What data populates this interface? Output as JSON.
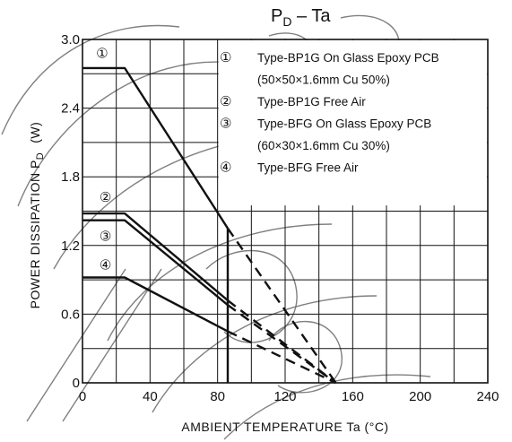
{
  "chart_data": {
    "type": "line",
    "title_main": "P",
    "title_sub": "D",
    "title_rest": " – Ta",
    "xlabel": "AMBIENT TEMPERATURE    Ta    (°C)",
    "ylabel_main": "POWER DISSIPATION  P",
    "ylabel_sub": "D",
    "ylabel_unit": "(W)",
    "xlim": [
      0,
      240
    ],
    "ylim": [
      0,
      3.0
    ],
    "x_ticks": [
      0,
      40,
      80,
      120,
      160,
      200,
      240
    ],
    "y_ticks": [
      0,
      0.6,
      1.2,
      1.8,
      2.4,
      3.0
    ],
    "x_tick_labels": [
      "0",
      "40",
      "80",
      "120",
      "160",
      "200",
      "240"
    ],
    "y_tick_labels": [
      "0",
      "0.6",
      "1.2",
      "1.8",
      "2.4",
      "3.0"
    ],
    "x_grid": [
      20,
      40,
      60,
      80,
      100,
      120,
      140,
      160,
      180,
      200,
      220
    ],
    "y_grid": [
      0.3,
      0.6,
      0.9,
      1.2,
      1.5,
      1.8,
      2.1,
      2.4,
      2.7
    ],
    "grid": true,
    "series": [
      {
        "marker": "①",
        "name": "Type-BP1G On Glass Epoxy PCB",
        "name_line2": "(50×50×1.6mm Cu 50%)",
        "solid": [
          [
            0,
            2.75
          ],
          [
            25,
            2.75
          ],
          [
            86,
            1.35
          ]
        ],
        "dashed": [
          [
            86,
            1.35
          ],
          [
            150,
            0
          ]
        ],
        "vertical": [
          [
            86,
            1.35
          ],
          [
            86,
            0
          ]
        ]
      },
      {
        "marker": "②",
        "name": "Type-BP1G Free Air",
        "name_line2": "",
        "solid": [
          [
            0,
            1.48
          ],
          [
            25,
            1.48
          ],
          [
            86,
            0.72
          ]
        ],
        "dashed": [
          [
            86,
            0.72
          ],
          [
            150,
            0
          ]
        ]
      },
      {
        "marker": "③",
        "name": "Type-BFG On Glass Epoxy PCB",
        "name_line2": "(60×30×1.6mm Cu 30%)",
        "solid": [
          [
            0,
            1.42
          ],
          [
            25,
            1.42
          ],
          [
            86,
            0.68
          ]
        ],
        "dashed": [
          [
            86,
            0.68
          ],
          [
            150,
            0
          ]
        ]
      },
      {
        "marker": "④",
        "name": "Type-BFG Free Air",
        "name_line2": "",
        "solid": [
          [
            0,
            0.92
          ],
          [
            25,
            0.92
          ],
          [
            86,
            0.45
          ]
        ],
        "dashed": [
          [
            86,
            0.45
          ],
          [
            150,
            0
          ]
        ]
      }
    ],
    "curve_markers": [
      {
        "symbol": "①",
        "x": 8,
        "y": 2.88
      },
      {
        "symbol": "②",
        "x": 10,
        "y": 1.62
      },
      {
        "symbol": "③",
        "x": 10,
        "y": 1.28
      },
      {
        "symbol": "④",
        "x": 10,
        "y": 1.03
      }
    ],
    "legend_placement": "top-right"
  }
}
